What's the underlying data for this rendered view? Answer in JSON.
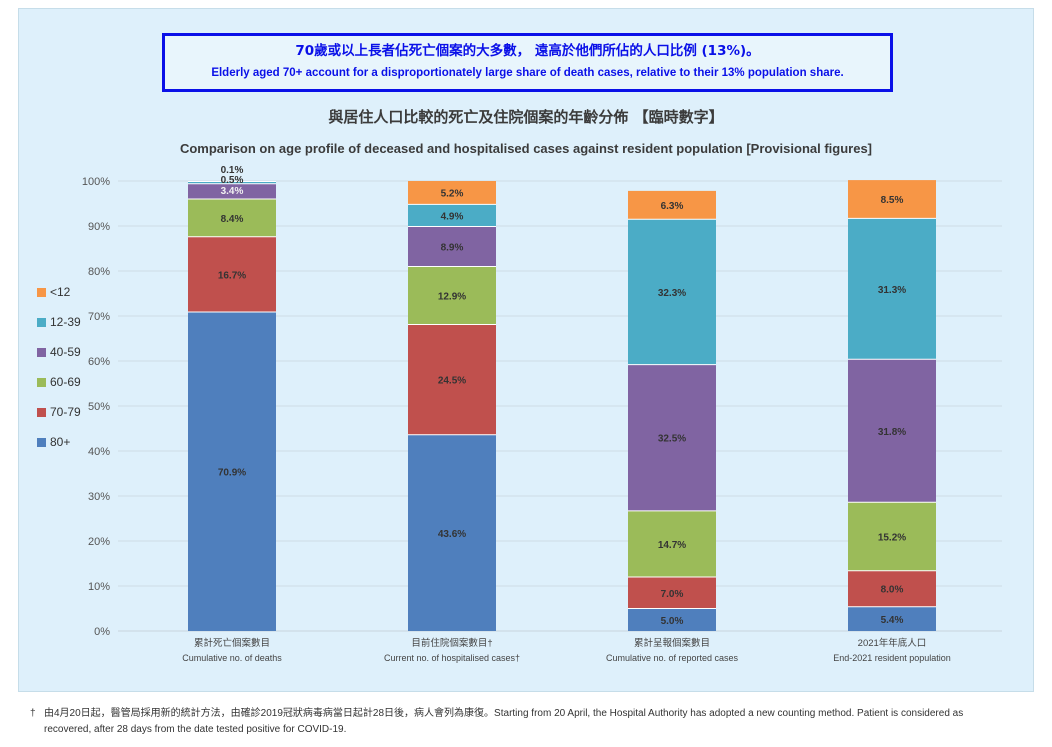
{
  "banner": {
    "zh": "70歲或以上長者佔死亡個案的大多數， 遠高於他們所佔的人口比例 (13%)。",
    "en": "Elderly aged 70+ account for a disproportionately large share of death cases, relative to their 13% population share."
  },
  "chart_data": {
    "type": "bar",
    "stacked": true,
    "title": "與居住人口比較的死亡及住院個案的年齡分佈 【臨時數字】",
    "subtitle": "Comparison on age profile of deceased and hospitalised cases against resident population  [Provisional figures]",
    "ylim": [
      0,
      100
    ],
    "yticks": [
      "0%",
      "10%",
      "20%",
      "30%",
      "40%",
      "50%",
      "60%",
      "70%",
      "80%",
      "90%",
      "100%"
    ],
    "grid": true,
    "legend_position": "left",
    "categories": [
      {
        "zh": "累計死亡個案數目",
        "en": "Cumulative no. of deaths"
      },
      {
        "zh": "目前住院個案數目†",
        "en": "Current no. of hospitalised cases†"
      },
      {
        "zh": "累計呈報個案數目",
        "en": "Cumulative no. of reported cases"
      },
      {
        "zh": "2021年年底人口",
        "en": "End-2021 resident population"
      }
    ],
    "series": [
      {
        "name": "80+",
        "color": "#4f7fbd",
        "values": [
          70.9,
          43.6,
          5.0,
          5.4
        ]
      },
      {
        "name": "70-79",
        "color": "#c0504d",
        "values": [
          16.7,
          24.5,
          7.0,
          8.0
        ]
      },
      {
        "name": "60-69",
        "color": "#9bbb59",
        "values": [
          8.4,
          12.9,
          14.7,
          15.2
        ]
      },
      {
        "name": "40-59",
        "color": "#8064a2",
        "values": [
          3.4,
          8.9,
          32.5,
          31.8
        ]
      },
      {
        "name": "12-39",
        "color": "#4bacc6",
        "values": [
          0.5,
          4.9,
          32.3,
          31.3
        ]
      },
      {
        "name": "<12",
        "color": "#f79646",
        "values": [
          0.1,
          5.2,
          6.3,
          8.5
        ]
      }
    ]
  },
  "footnote": {
    "dagger": "†",
    "text": "由4月20日起，醫管局採用新的統計方法，由確診2019冠狀病毒病當日起計28日後，病人會列為康復。Starting from 20 April, the Hospital Authority has adopted a new counting method. Patient is considered as recovered, after 28 days from the date tested positive for COVID-19."
  }
}
